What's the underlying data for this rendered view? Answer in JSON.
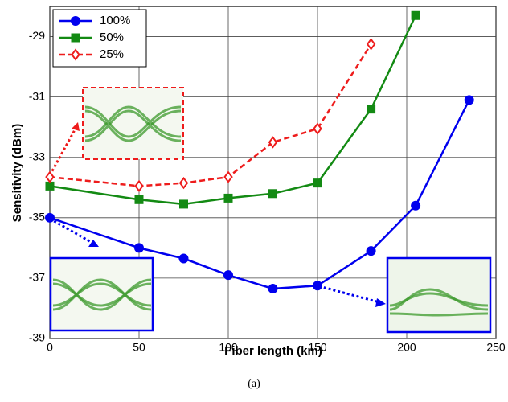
{
  "chart_data": {
    "type": "line",
    "xlabel": "Fiber length (km)",
    "ylabel": "Sensitivity (dBm)",
    "caption": "(a)",
    "xlim": [
      0,
      250
    ],
    "xticks": [
      0,
      50,
      100,
      150,
      200,
      250
    ],
    "ylim": [
      -39,
      -28
    ],
    "yticks": [
      -39,
      -37,
      -35,
      -33,
      -31,
      -29
    ],
    "grid": true,
    "legend": "upper left",
    "series": [
      {
        "name": "100%",
        "color": "#0000ee",
        "marker": "circle",
        "dash": "solid",
        "x": [
          0,
          50,
          75,
          100,
          125,
          150,
          180,
          205,
          235
        ],
        "values": [
          -35,
          -36,
          -36.35,
          -36.9,
          -37.35,
          -37.25,
          -36.1,
          -34.6,
          -31.1
        ]
      },
      {
        "name": "50%",
        "color": "#138a13",
        "marker": "square",
        "dash": "solid",
        "x": [
          0,
          50,
          75,
          100,
          125,
          150,
          180,
          205
        ],
        "values": [
          -33.95,
          -34.4,
          -34.55,
          -34.35,
          -34.2,
          -33.85,
          -31.4,
          -28.3
        ]
      },
      {
        "name": "25%",
        "color": "#ee1c1c",
        "marker": "diamond",
        "dash": "dashed",
        "x": [
          0,
          50,
          75,
          100,
          125,
          150,
          180
        ],
        "values": [
          -33.65,
          -33.95,
          -33.85,
          -33.65,
          -32.5,
          -32.05,
          -29.25
        ]
      }
    ]
  }
}
